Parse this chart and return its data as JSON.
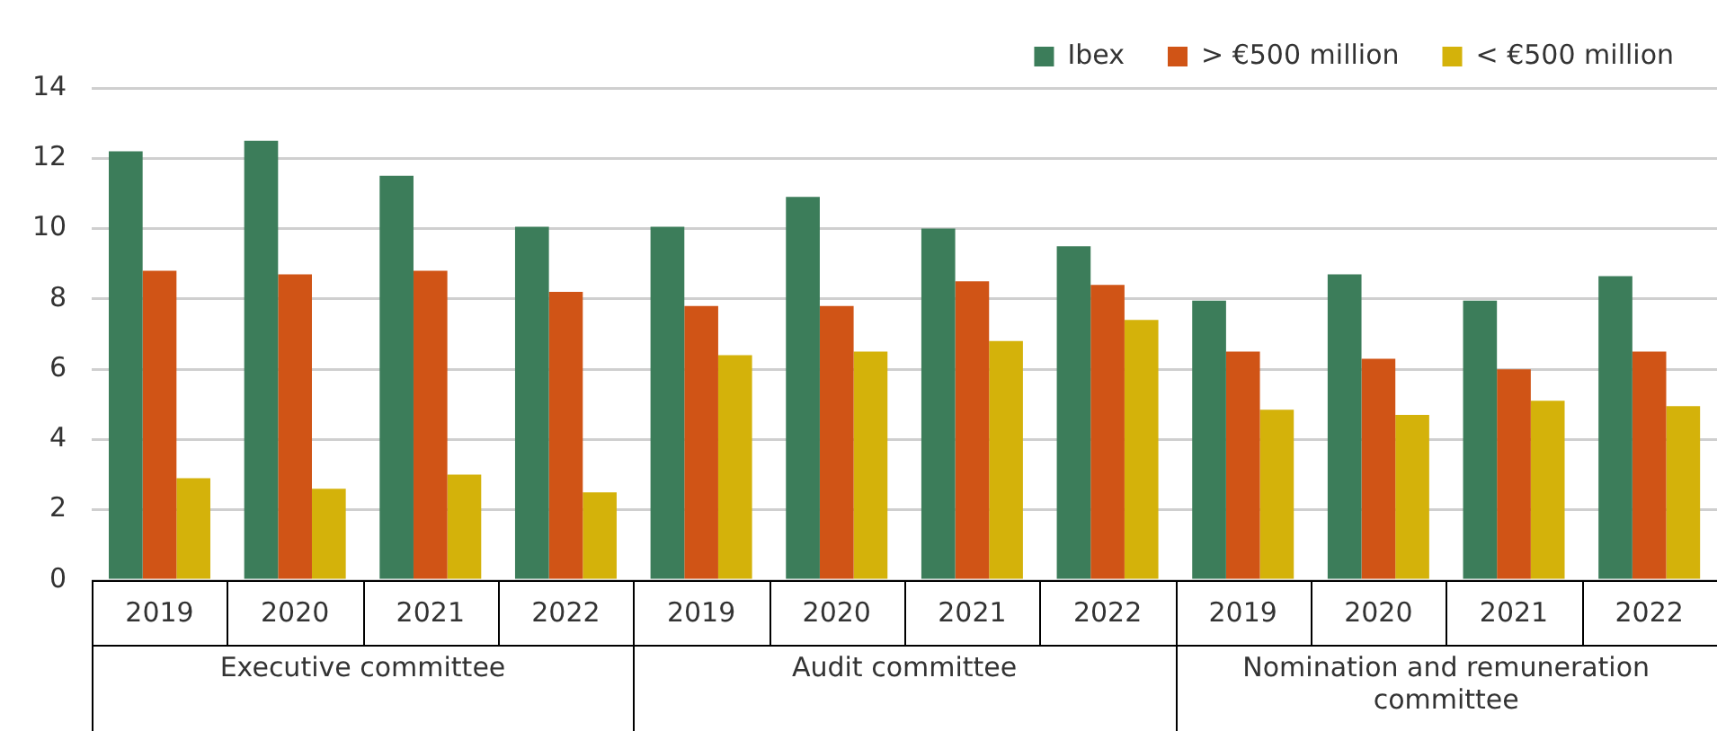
{
  "chart_data": {
    "type": "bar",
    "categories": [
      "2019",
      "2020",
      "2021",
      "2022",
      "2019",
      "2020",
      "2021",
      "2022",
      "2019",
      "2020",
      "2021",
      "2022"
    ],
    "series": [
      {
        "name": "Ibex",
        "color": "#3c7d5a",
        "values": [
          12.2,
          12.5,
          11.5,
          10.05,
          10.05,
          10.9,
          10.0,
          9.5,
          7.95,
          8.7,
          7.95,
          8.65
        ]
      },
      {
        "name": "> €500 million",
        "color": "#d05416",
        "values": [
          8.8,
          8.7,
          8.8,
          8.2,
          7.8,
          7.8,
          8.5,
          8.4,
          6.5,
          6.3,
          6.0,
          6.5
        ]
      },
      {
        "name": "< €500 million",
        "color": "#d4b20a",
        "values": [
          2.9,
          2.6,
          3.0,
          2.5,
          6.4,
          6.5,
          6.8,
          7.4,
          4.85,
          4.7,
          5.1,
          4.95
        ]
      }
    ],
    "annotations": [
      "Executive committee",
      "Audit committee",
      "Nomination and remuneration committee"
    ],
    "ylim": [
      0,
      14
    ],
    "yticks": [
      0,
      2,
      4,
      6,
      8,
      10,
      12,
      14
    ],
    "grid": "y",
    "legend": "top right"
  }
}
